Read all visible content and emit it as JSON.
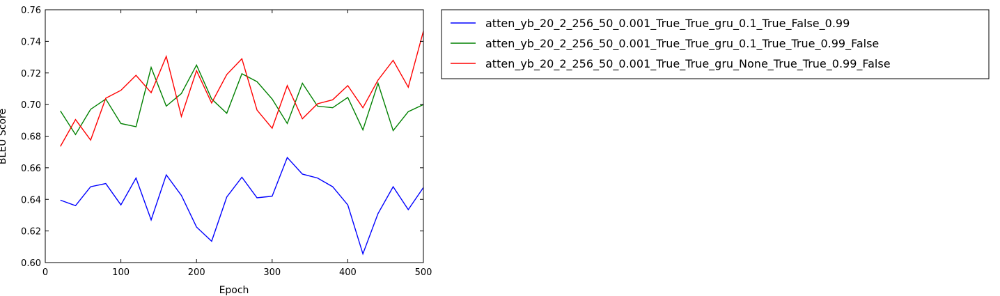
{
  "chart_data": {
    "type": "line",
    "title": "",
    "xlabel": "Epoch",
    "ylabel": "BLEU Score",
    "xlim": [
      0,
      500
    ],
    "ylim": [
      0.6,
      0.76
    ],
    "xticks": [
      0,
      100,
      200,
      300,
      400,
      500
    ],
    "yticks": [
      0.6,
      0.62,
      0.64,
      0.66,
      0.68,
      0.7,
      0.72,
      0.74,
      0.76
    ],
    "xtick_labels": [
      "0",
      "100",
      "200",
      "300",
      "400",
      "500"
    ],
    "ytick_labels": [
      "0.60",
      "0.62",
      "0.64",
      "0.66",
      "0.68",
      "0.70",
      "0.72",
      "0.74",
      "0.76"
    ],
    "grid": false,
    "legend_position": "outside-right-top",
    "x": [
      20,
      40,
      60,
      80,
      100,
      120,
      140,
      160,
      180,
      200,
      220,
      240,
      260,
      280,
      300,
      320,
      340,
      360,
      380,
      400,
      420,
      440,
      460,
      480,
      500
    ],
    "series": [
      {
        "name": "atten_yb_20_2_256_50_0.001_True_True_gru_0.1_True_False_0.99",
        "color": "#0000ff",
        "values": [
          0.6395,
          0.636,
          0.648,
          0.65,
          0.6365,
          0.6535,
          0.627,
          0.6555,
          0.6425,
          0.6225,
          0.6135,
          0.6415,
          0.654,
          0.641,
          0.642,
          0.6665,
          0.656,
          0.6535,
          0.648,
          0.6365,
          0.6055,
          0.631,
          0.648,
          0.6335,
          0.6475
        ]
      },
      {
        "name": "atten_yb_20_2_256_50_0.001_True_True_gru_0.1_True_True_0.99_False",
        "color": "#008000",
        "values": [
          0.696,
          0.681,
          0.697,
          0.7035,
          0.688,
          0.686,
          0.7235,
          0.699,
          0.707,
          0.725,
          0.7035,
          0.6945,
          0.7195,
          0.7145,
          0.7035,
          0.688,
          0.7135,
          0.699,
          0.698,
          0.7045,
          0.684,
          0.7135,
          0.6835,
          0.6955,
          0.7
        ]
      },
      {
        "name": "atten_yb_20_2_256_50_0.001_True_True_gru_None_True_True_0.99_False",
        "color": "#ff0000",
        "values": [
          0.6735,
          0.6905,
          0.6775,
          0.704,
          0.709,
          0.7185,
          0.7075,
          0.7305,
          0.6925,
          0.7215,
          0.701,
          0.719,
          0.729,
          0.6965,
          0.685,
          0.712,
          0.691,
          0.7005,
          0.703,
          0.712,
          0.698,
          0.7155,
          0.728,
          0.711,
          0.7465
        ]
      }
    ]
  }
}
